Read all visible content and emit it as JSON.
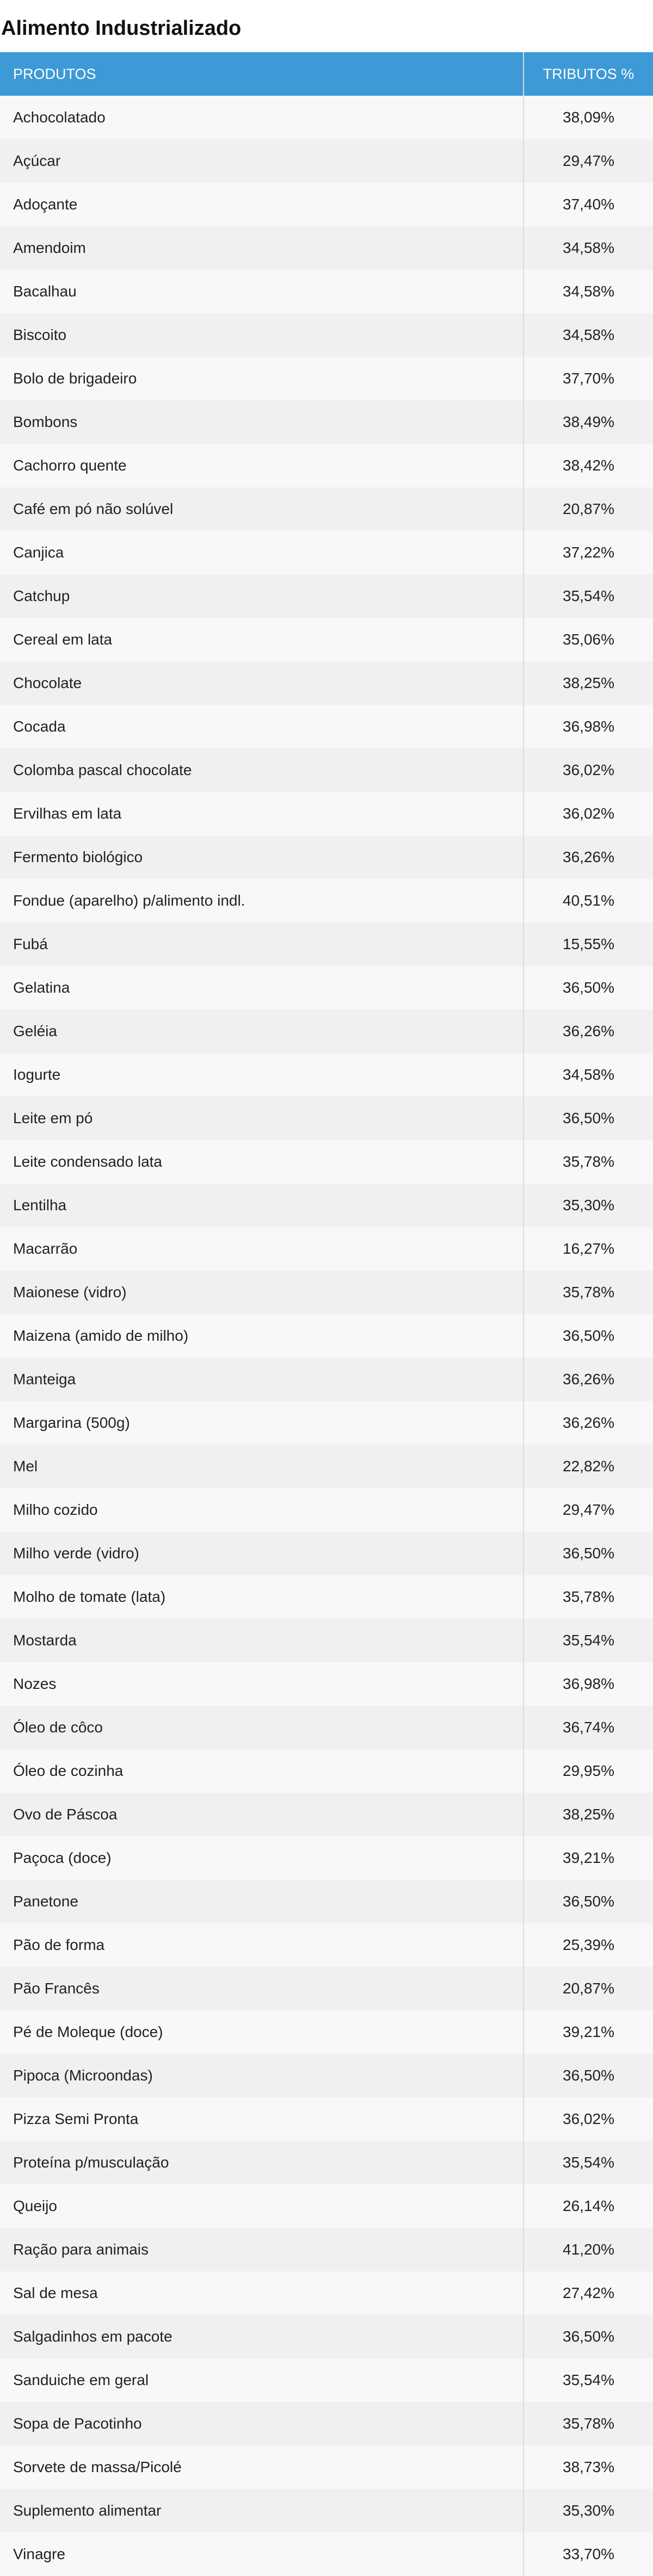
{
  "page": {
    "title": "Alimento Industrializado"
  },
  "table": {
    "headers": {
      "product": "PRODUTOS",
      "tax": "TRIBUTOS %"
    },
    "header_color": "#3d9ad6",
    "rows": [
      {
        "product": "Achocolatado",
        "tax": "38,09%"
      },
      {
        "product": "Açúcar",
        "tax": "29,47%"
      },
      {
        "product": "Adoçante",
        "tax": "37,40%"
      },
      {
        "product": "Amendoim",
        "tax": "34,58%"
      },
      {
        "product": "Bacalhau",
        "tax": "34,58%"
      },
      {
        "product": "Biscoito",
        "tax": "34,58%"
      },
      {
        "product": "Bolo de brigadeiro",
        "tax": "37,70%"
      },
      {
        "product": "Bombons",
        "tax": "38,49%"
      },
      {
        "product": "Cachorro quente",
        "tax": "38,42%"
      },
      {
        "product": "Café em pó não solúvel",
        "tax": "20,87%"
      },
      {
        "product": "Canjica",
        "tax": "37,22%"
      },
      {
        "product": "Catchup",
        "tax": "35,54%"
      },
      {
        "product": "Cereal em lata",
        "tax": "35,06%"
      },
      {
        "product": "Chocolate",
        "tax": "38,25%"
      },
      {
        "product": "Cocada",
        "tax": "36,98%"
      },
      {
        "product": "Colomba pascal chocolate",
        "tax": "36,02%"
      },
      {
        "product": "Ervilhas em lata",
        "tax": "36,02%"
      },
      {
        "product": "Fermento biológico",
        "tax": "36,26%"
      },
      {
        "product": "Fondue (aparelho) p/alimento indl.",
        "tax": "40,51%"
      },
      {
        "product": "Fubá",
        "tax": "15,55%"
      },
      {
        "product": "Gelatina",
        "tax": "36,50%"
      },
      {
        "product": "Geléia",
        "tax": "36,26%"
      },
      {
        "product": "Iogurte",
        "tax": "34,58%"
      },
      {
        "product": "Leite em pó",
        "tax": "36,50%"
      },
      {
        "product": "Leite condensado lata",
        "tax": "35,78%"
      },
      {
        "product": "Lentilha",
        "tax": "35,30%"
      },
      {
        "product": "Macarrão",
        "tax": "16,27%"
      },
      {
        "product": "Maionese (vidro)",
        "tax": "35,78%"
      },
      {
        "product": "Maizena (amido de milho)",
        "tax": "36,50%"
      },
      {
        "product": "Manteiga",
        "tax": "36,26%"
      },
      {
        "product": "Margarina (500g)",
        "tax": "36,26%"
      },
      {
        "product": "Mel",
        "tax": "22,82%"
      },
      {
        "product": "Milho cozido",
        "tax": "29,47%"
      },
      {
        "product": "Milho verde (vidro)",
        "tax": "36,50%"
      },
      {
        "product": "Molho de tomate (lata)",
        "tax": "35,78%"
      },
      {
        "product": "Mostarda",
        "tax": "35,54%"
      },
      {
        "product": "Nozes",
        "tax": "36,98%"
      },
      {
        "product": "Óleo de côco",
        "tax": "36,74%"
      },
      {
        "product": "Óleo de cozinha",
        "tax": "29,95%"
      },
      {
        "product": "Ovo de Páscoa",
        "tax": "38,25%"
      },
      {
        "product": "Paçoca (doce)",
        "tax": "39,21%"
      },
      {
        "product": "Panetone",
        "tax": "36,50%"
      },
      {
        "product": "Pão de forma",
        "tax": "25,39%"
      },
      {
        "product": "Pão Francês",
        "tax": "20,87%"
      },
      {
        "product": "Pé de Moleque (doce)",
        "tax": "39,21%"
      },
      {
        "product": "Pipoca (Microondas)",
        "tax": "36,50%"
      },
      {
        "product": "Pizza Semi Pronta",
        "tax": "36,02%"
      },
      {
        "product": "Proteína p/musculação",
        "tax": "35,54%"
      },
      {
        "product": "Queijo",
        "tax": "26,14%"
      },
      {
        "product": "Ração para animais",
        "tax": "41,20%"
      },
      {
        "product": "Sal de mesa",
        "tax": "27,42%"
      },
      {
        "product": "Salgadinhos em pacote",
        "tax": "36,50%"
      },
      {
        "product": "Sanduiche em geral",
        "tax": "35,54%"
      },
      {
        "product": "Sopa de Pacotinho",
        "tax": "35,78%"
      },
      {
        "product": "Sorvete de massa/Picolé",
        "tax": "38,73%"
      },
      {
        "product": "Suplemento alimentar",
        "tax": "35,30%"
      },
      {
        "product": "Vinagre",
        "tax": "33,70%"
      }
    ]
  }
}
